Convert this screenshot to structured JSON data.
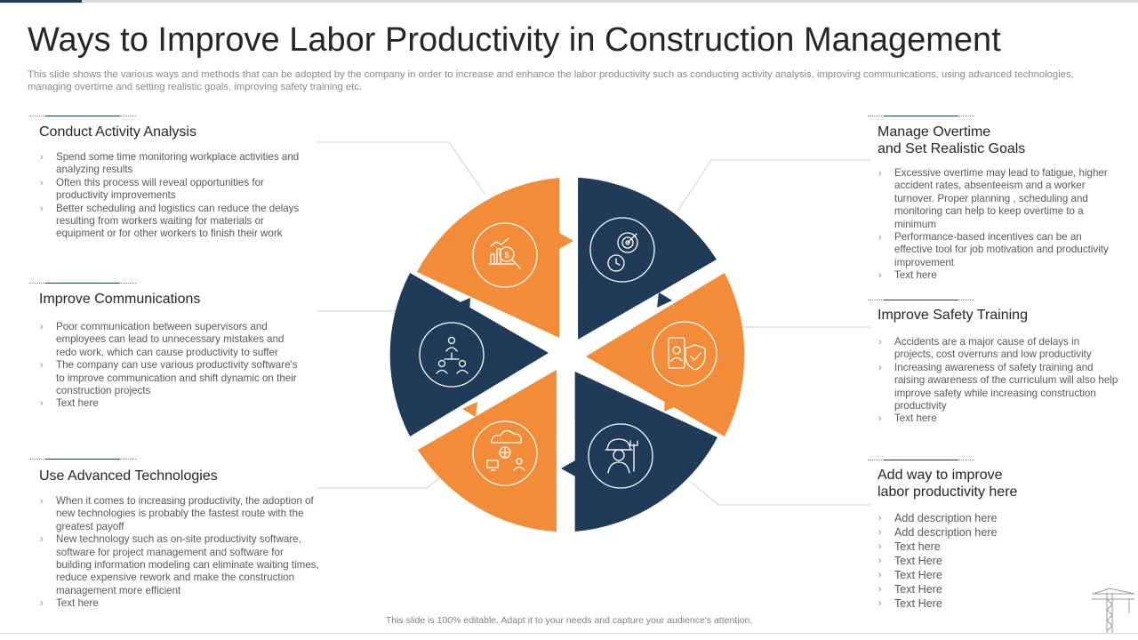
{
  "title": "Ways to Improve Labor Productivity in Construction Management",
  "subtitle": "This slide shows the various ways and methods that can be adopted by the company in order to increase and enhance the labor productivity such as conducting activity analysis, improving communications, using advanced technologies, managing overtime and setting realistic goals, improving safety training etc.",
  "colors": {
    "orange": "#f28c38",
    "navy": "#1f3b57"
  },
  "sections": {
    "conduct": {
      "title": "Conduct  Activity Analysis",
      "bullets": [
        "Spend some time monitoring workplace activities and analyzing results",
        "Often this process will reveal opportunities for productivity improvements",
        "Better scheduling and logistics can reduce the delays resulting from workers waiting for materials or equipment or for other workers to finish their work"
      ]
    },
    "communications": {
      "title": "Improve  Communications",
      "bullets": [
        "Poor communication between supervisors and employees can lead to unnecessary mistakes and redo work, which can cause productivity to suffer",
        "The company can use various productivity software's to improve communication and shift dynamic on their construction projects",
        "Text here"
      ]
    },
    "technologies": {
      "title": "Use Advanced  Technologies",
      "bullets": [
        "When it comes to increasing productivity, the adoption of new technologies is probably the fastest route with the greatest payoff",
        "New technology such as on-site productivity software, software for project management and software for building information modeling can eliminate waiting times, reduce expensive rework and make the construction management more efficient",
        "Text here"
      ]
    },
    "overtime": {
      "title_line1": "Manage Overtime",
      "title_line2": "and Set Realistic Goals",
      "bullets": [
        "Excessive overtime may lead to fatigue, higher accident rates, absenteeism and a worker turnover. Proper planning , scheduling and monitoring can help to keep overtime to a minimum",
        "Performance-based incentives can be an effective tool for job motivation and productivity improvement",
        "Text here"
      ]
    },
    "safety": {
      "title": "Improve  Safety Training",
      "bullets": [
        "Accidents are a major cause of delays in projects, cost overruns and low productivity",
        "Increasing awareness of safety training and raising awareness of the curriculum will also help improve safety while increasing construction productivity",
        "Text here"
      ]
    },
    "addway": {
      "title_line1": "Add way to improve",
      "title_line2": "labor productivity here",
      "bullets": [
        "Add description here",
        "Add description here",
        "Text here",
        "Text Here",
        "Text Here",
        "Text Here",
        "Text Here"
      ]
    }
  },
  "diagram": {
    "segments": [
      {
        "name": "conduct",
        "color": "orange",
        "icon": "analytics-search-icon"
      },
      {
        "name": "overtime",
        "color": "navy",
        "icon": "target-clock-icon"
      },
      {
        "name": "safety",
        "color": "orange",
        "icon": "mobile-shield-icon"
      },
      {
        "name": "addway",
        "color": "navy",
        "icon": "worker-tools-icon"
      },
      {
        "name": "technologies",
        "color": "orange",
        "icon": "cloud-network-icon"
      },
      {
        "name": "communications",
        "color": "navy",
        "icon": "people-network-icon"
      }
    ]
  },
  "footer": "This slide is 100% editable.  Adapt it to your needs and capture your audience's attention."
}
